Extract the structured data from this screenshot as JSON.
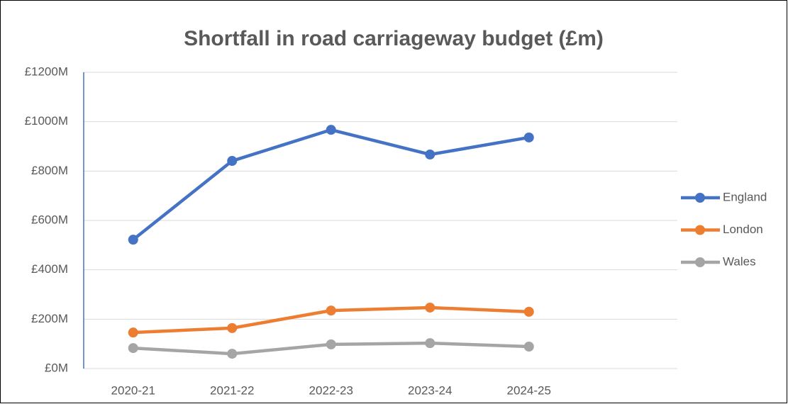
{
  "chart_data": {
    "type": "line",
    "title": "Shortfall in road carriageway budget (£m)",
    "categories": [
      "2020-21",
      "2021-22",
      "2022-23",
      "2023-24",
      "2024-25",
      null
    ],
    "series": [
      {
        "name": "England",
        "color": "#4472c4",
        "values": [
          522,
          841,
          967,
          867,
          936,
          null
        ]
      },
      {
        "name": "London",
        "color": "#ed7d31",
        "values": [
          146,
          164,
          235,
          247,
          230,
          null
        ]
      },
      {
        "name": "Wales",
        "color": "#a5a5a5",
        "values": [
          83,
          60,
          98,
          103,
          89,
          null
        ]
      }
    ],
    "ylim": [
      0,
      1200
    ],
    "yticks": [
      {
        "value": 0,
        "label": "£0M"
      },
      {
        "value": 200,
        "label": "£200M"
      },
      {
        "value": 400,
        "label": "£400M"
      },
      {
        "value": 600,
        "label": "£600M"
      },
      {
        "value": 800,
        "label": "£800M"
      },
      {
        "value": 1000,
        "label": "£1000M"
      },
      {
        "value": 1200,
        "label": "£1200M"
      }
    ],
    "grid": true,
    "legend": "right"
  }
}
